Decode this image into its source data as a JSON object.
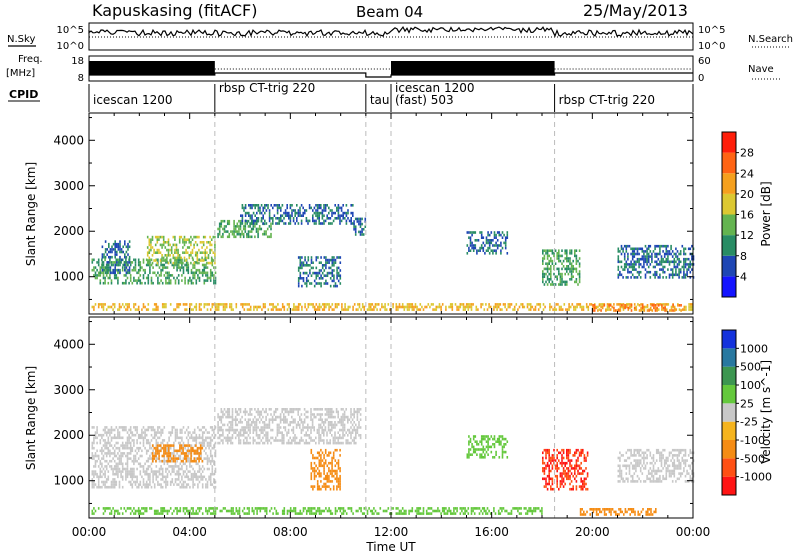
{
  "header": {
    "title": "Kapuskasing (fitACF)",
    "beam": "Beam 04",
    "date": "25/May/2013"
  },
  "top_panels": {
    "nsky_label": "N.Sky",
    "nsky_ticks": [
      "10^5",
      "10^0"
    ],
    "nsearch_label": "N.Search",
    "nsearch_ticks": [
      "10^5",
      "10^0"
    ],
    "freq_label_line1": "Freq.",
    "freq_label_line2": "[MHz]",
    "freq_ticks": [
      "18",
      "8"
    ],
    "nave_label": "Nave",
    "nave_ticks": [
      "60",
      "0"
    ],
    "cpid_label": "CPID",
    "cpid_segments": [
      {
        "label": "icescan 1200",
        "start": 0.0,
        "end": 5.0
      },
      {
        "label": "rbsp CT-trig 220",
        "start": 5.0,
        "end": 11.0
      },
      {
        "label": "tau",
        "start": 11.0,
        "end": 12.0
      },
      {
        "label": "icescan 1200",
        "start": 12.0,
        "end": 18.5
      },
      {
        "label": "(fast) 503",
        "start": 12.0,
        "end": 18.5
      },
      {
        "label": "rbsp CT-trig 220",
        "start": 18.5,
        "end": 24.0
      }
    ]
  },
  "power_colorbar": {
    "title": "Power [dB]",
    "ticks": [
      "4",
      "8",
      "12",
      "16",
      "20",
      "24",
      "28"
    ],
    "colors": [
      "#1414ff",
      "#1e46b4",
      "#288c64",
      "#64b450",
      "#dcc832",
      "#f5a01e",
      "#ff6414",
      "#ff1e0a"
    ]
  },
  "velocity_colorbar": {
    "title": "Velocity [m s^-1]",
    "ticks": [
      "1000",
      "500",
      "100",
      "25",
      "-25",
      "-100",
      "-500",
      "-1000"
    ],
    "colors": [
      "#1432dc",
      "#2878a0",
      "#3c9650",
      "#64c83c",
      "#c8c8c8",
      "#f5b41e",
      "#f58c14",
      "#ff5014",
      "#ff1414"
    ]
  },
  "chart_data": {
    "type": "heatmap",
    "xlabel": "Time UT",
    "ylabel": "Slant Range [km]",
    "xlim": [
      0,
      24
    ],
    "ylim": [
      180,
      4600
    ],
    "x_tick_labels": [
      "00:00",
      "04:00",
      "08:00",
      "12:00",
      "16:00",
      "20:00",
      "00:00"
    ],
    "y_tick_labels": [
      "1000",
      "2000",
      "3000",
      "4000"
    ],
    "mode_boundaries": [
      5.0,
      11.0,
      12.0,
      18.5
    ],
    "panels": [
      {
        "name": "Power",
        "regions": [
          {
            "t0": 0.1,
            "t1": 5.0,
            "r0": 850,
            "r1": 1400,
            "value": 12
          },
          {
            "t0": 2.3,
            "t1": 5.0,
            "r0": 1300,
            "r1": 1900,
            "value": 16
          },
          {
            "t0": 0.5,
            "t1": 1.6,
            "r0": 1100,
            "r1": 1800,
            "value": 8
          },
          {
            "t0": 0.1,
            "t1": 24.0,
            "r0": 250,
            "r1": 420,
            "value": 20
          },
          {
            "t0": 5.1,
            "t1": 7.2,
            "r0": 1850,
            "r1": 2250,
            "value": 12
          },
          {
            "t0": 6.0,
            "t1": 10.5,
            "r0": 2150,
            "r1": 2600,
            "value": 8
          },
          {
            "t0": 8.3,
            "t1": 10.0,
            "r0": 800,
            "r1": 1450,
            "value": 8
          },
          {
            "t0": 10.5,
            "t1": 11.0,
            "r0": 1950,
            "r1": 2300,
            "value": 8
          },
          {
            "t0": 15.0,
            "t1": 16.6,
            "r0": 1500,
            "r1": 2000,
            "value": 8
          },
          {
            "t0": 18.0,
            "t1": 19.5,
            "r0": 800,
            "r1": 1600,
            "value": 12
          },
          {
            "t0": 21.0,
            "t1": 24.0,
            "r0": 1000,
            "r1": 1700,
            "value": 8
          },
          {
            "t0": 20.0,
            "t1": 23.5,
            "r0": 250,
            "r1": 400,
            "value": 24
          }
        ]
      },
      {
        "name": "Velocity",
        "regions": [
          {
            "t0": 0.1,
            "t1": 5.0,
            "r0": 850,
            "r1": 2200,
            "value": 0
          },
          {
            "t0": 2.5,
            "t1": 4.5,
            "r0": 1400,
            "r1": 1800,
            "value": -300
          },
          {
            "t0": 5.1,
            "t1": 10.8,
            "r0": 1800,
            "r1": 2600,
            "value": 0
          },
          {
            "t0": 0.1,
            "t1": 18.0,
            "r0": 250,
            "r1": 420,
            "value": 60
          },
          {
            "t0": 8.8,
            "t1": 10.0,
            "r0": 800,
            "r1": 1700,
            "value": -300
          },
          {
            "t0": 15.0,
            "t1": 16.6,
            "r0": 1500,
            "r1": 2000,
            "value": 60
          },
          {
            "t0": 18.0,
            "t1": 19.8,
            "r0": 800,
            "r1": 1700,
            "value": -1000
          },
          {
            "t0": 21.0,
            "t1": 24.0,
            "r0": 1000,
            "r1": 1700,
            "value": 0
          },
          {
            "t0": 19.5,
            "t1": 22.5,
            "r0": 250,
            "r1": 400,
            "value": -300
          }
        ]
      }
    ]
  }
}
